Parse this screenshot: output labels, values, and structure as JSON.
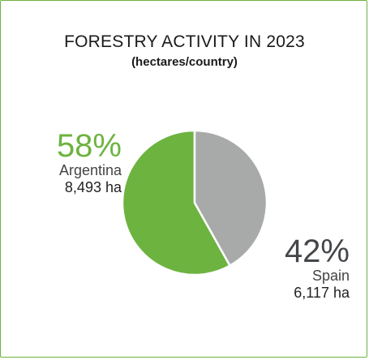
{
  "chart_data": {
    "type": "pie",
    "title": "FORESTRY ACTIVITY IN 2023",
    "subtitle": "(hectares/country)",
    "slices": [
      {
        "label": "Argentina",
        "percent_label": "58%",
        "value_label": "8,493 ha",
        "value": 8493,
        "color": "#6db33f"
      },
      {
        "label": "Spain",
        "percent_label": "42%",
        "value_label": "6,117 ha",
        "value": 6117,
        "color": "#a7aaa9"
      }
    ]
  }
}
